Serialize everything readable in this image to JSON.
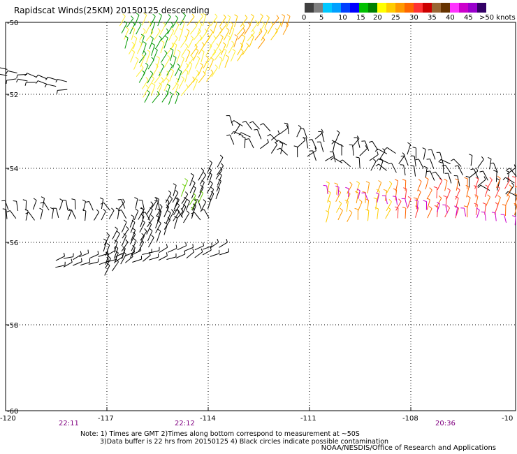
{
  "title": "Rapidscat Winds(25KM) 20150125 descending",
  "colorbar": {
    "colors": [
      "#404040",
      "#808080",
      "#00c8ff",
      "#00a0ff",
      "#0040ff",
      "#0000ff",
      "#00c000",
      "#008000",
      "#ffff00",
      "#ffcc00",
      "#ff9900",
      "#ff6600",
      "#ff3333",
      "#cc0000",
      "#996633",
      "#663300",
      "#ff33ff",
      "#cc00cc",
      "#9900cc",
      "#330066"
    ],
    "labels": [
      "0",
      "5",
      "10",
      "15",
      "20",
      "25",
      "30",
      "35",
      "40",
      "45",
      ">50 knots"
    ]
  },
  "map": {
    "lon_ticks": [
      "-120",
      "-117",
      "-114",
      "-111",
      "-108",
      "-10"
    ],
    "lat_ticks": [
      "-50",
      "-52",
      "-54",
      "-56",
      "-58",
      "-60"
    ],
    "time_labels": [
      "22:11",
      "22:12",
      "20:36"
    ]
  },
  "notes": {
    "line1": "Note: 1) Times are GMT  2)Times along bottom correspond to measurement at ~50S",
    "line2": "3)Data buffer is 22 hrs from 20150125  4) Black circles indicate possible contamination"
  },
  "credit": "NOAA/NESDIS/Office of Research and Applications"
}
